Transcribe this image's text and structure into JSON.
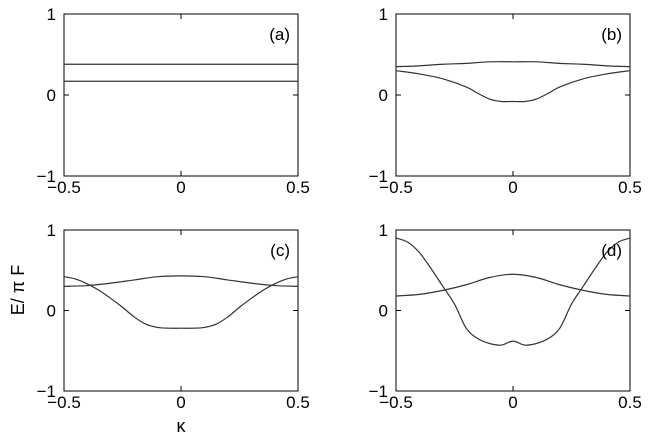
{
  "figure": {
    "ylabel": "E/ π F",
    "xlabel": "κ"
  },
  "chart_data": [
    {
      "type": "line",
      "panel_label": "(a)",
      "xlim": [
        -0.5,
        0.5
      ],
      "ylim": [
        -1,
        1
      ],
      "xticks": [
        "−0.5",
        "0",
        "0.5"
      ],
      "yticks": [
        "−1",
        "0",
        "1"
      ],
      "series": [
        {
          "x": [
            -0.5,
            0.5
          ],
          "y": [
            0.38,
            0.38
          ]
        },
        {
          "x": [
            -0.5,
            0.5
          ],
          "y": [
            0.17,
            0.17
          ]
        }
      ]
    },
    {
      "type": "line",
      "panel_label": "(b)",
      "xlim": [
        -0.5,
        0.5
      ],
      "ylim": [
        -1,
        1
      ],
      "xticks": [
        "−0.5",
        "0",
        "0.5"
      ],
      "yticks": [
        "−1",
        "0",
        "1"
      ],
      "series": [
        {
          "x": [
            -0.5,
            -0.4,
            -0.3,
            -0.2,
            -0.1,
            0,
            0.1,
            0.2,
            0.3,
            0.4,
            0.5
          ],
          "y": [
            0.35,
            0.36,
            0.38,
            0.39,
            0.41,
            0.41,
            0.41,
            0.39,
            0.38,
            0.36,
            0.35
          ]
        },
        {
          "x": [
            -0.5,
            -0.4,
            -0.3,
            -0.2,
            -0.15,
            -0.1,
            -0.05,
            0,
            0.05,
            0.1,
            0.15,
            0.2,
            0.3,
            0.4,
            0.5
          ],
          "y": [
            0.3,
            0.26,
            0.2,
            0.1,
            0.02,
            -0.05,
            -0.08,
            -0.08,
            -0.08,
            -0.05,
            0.02,
            0.1,
            0.2,
            0.26,
            0.3
          ]
        }
      ]
    },
    {
      "type": "line",
      "panel_label": "(c)",
      "xlim": [
        -0.5,
        0.5
      ],
      "ylim": [
        -1,
        1
      ],
      "xticks": [
        "−0.5",
        "0",
        "0.5"
      ],
      "yticks": [
        "−1",
        "0",
        "1"
      ],
      "series": [
        {
          "x": [
            -0.5,
            -0.4,
            -0.3,
            -0.2,
            -0.1,
            0,
            0.1,
            0.2,
            0.3,
            0.4,
            0.5
          ],
          "y": [
            0.3,
            0.31,
            0.34,
            0.38,
            0.42,
            0.43,
            0.42,
            0.38,
            0.34,
            0.31,
            0.3
          ]
        },
        {
          "x": [
            -0.5,
            -0.45,
            -0.4,
            -0.35,
            -0.3,
            -0.25,
            -0.2,
            -0.15,
            -0.1,
            -0.05,
            0,
            0.05,
            0.1,
            0.15,
            0.2,
            0.25,
            0.3,
            0.35,
            0.4,
            0.45,
            0.5
          ],
          "y": [
            0.42,
            0.39,
            0.33,
            0.25,
            0.15,
            0.04,
            -0.08,
            -0.17,
            -0.21,
            -0.22,
            -0.22,
            -0.22,
            -0.21,
            -0.17,
            -0.08,
            0.04,
            0.15,
            0.25,
            0.33,
            0.39,
            0.42
          ]
        }
      ]
    },
    {
      "type": "line",
      "panel_label": "(d)",
      "xlim": [
        -0.5,
        0.5
      ],
      "ylim": [
        -1,
        1
      ],
      "xticks": [
        "−0.5",
        "0",
        "0.5"
      ],
      "yticks": [
        "−1",
        "0",
        "1"
      ],
      "series": [
        {
          "x": [
            -0.5,
            -0.4,
            -0.3,
            -0.2,
            -0.1,
            0,
            0.1,
            0.2,
            0.3,
            0.4,
            0.5
          ],
          "y": [
            0.18,
            0.2,
            0.25,
            0.32,
            0.41,
            0.45,
            0.41,
            0.32,
            0.25,
            0.2,
            0.18
          ]
        },
        {
          "x": [
            -0.5,
            -0.45,
            -0.4,
            -0.35,
            -0.3,
            -0.25,
            -0.2,
            -0.15,
            -0.1,
            -0.05,
            0,
            0.05,
            0.1,
            0.15,
            0.2,
            0.25,
            0.3,
            0.35,
            0.4,
            0.45,
            0.5
          ],
          "y": [
            0.9,
            0.85,
            0.72,
            0.52,
            0.3,
            0.08,
            -0.22,
            -0.35,
            -0.41,
            -0.43,
            -0.38,
            -0.43,
            -0.41,
            -0.35,
            -0.22,
            0.08,
            0.3,
            0.52,
            0.72,
            0.85,
            0.9
          ]
        }
      ]
    }
  ]
}
